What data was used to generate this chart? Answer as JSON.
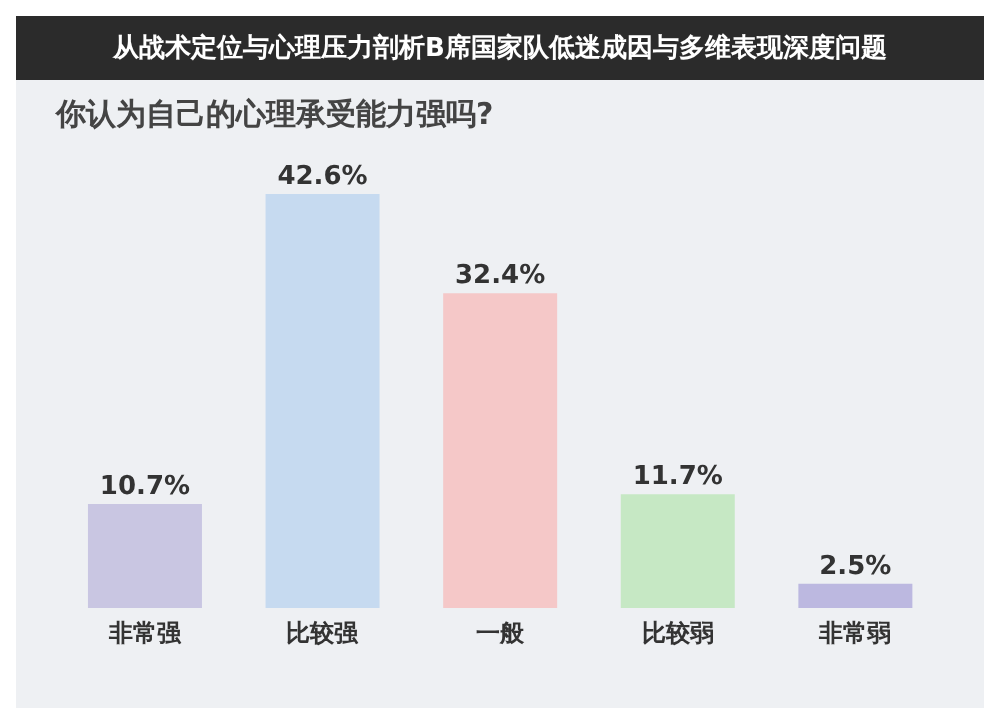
{
  "chart_data": {
    "type": "bar",
    "title": "你认为自己的心理承受能力强吗?",
    "annotations": [
      "从战术定位与心理压力剖析B席国家队低迷成因与多维表现深度问题"
    ],
    "categories": [
      "非常强",
      "比较强",
      "一般",
      "比较弱",
      "非常弱"
    ],
    "values": [
      10.7,
      42.6,
      32.4,
      11.7,
      2.5
    ],
    "colors": [
      "#c9c6e2",
      "#c6daf0",
      "#f5c8c8",
      "#c6e8c4",
      "#bcb8e0"
    ],
    "value_labels": [
      "10.7%",
      "42.6%",
      "32.4%",
      "11.7%",
      "2.5%"
    ]
  }
}
